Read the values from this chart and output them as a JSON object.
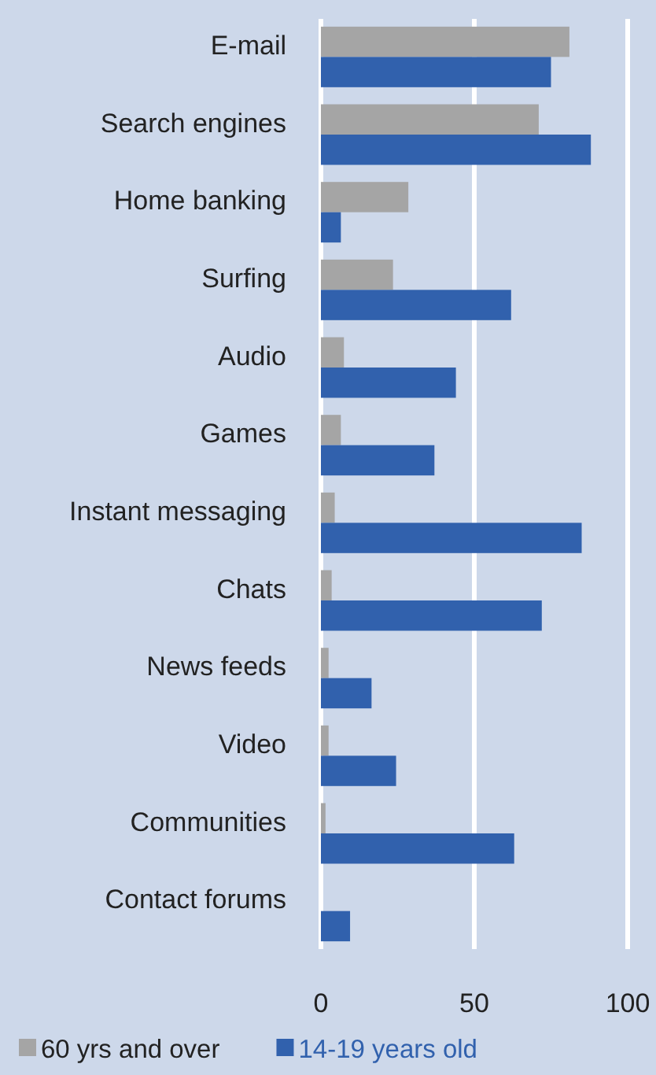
{
  "chart_data": {
    "type": "bar",
    "orientation": "horizontal",
    "categories": [
      "E-mail",
      "Search engines",
      "Home banking",
      "Surfing",
      "Audio",
      "Games",
      "Instant messaging",
      "Chats",
      "News feeds",
      "Video",
      "Communities",
      "Contact forums"
    ],
    "series": [
      {
        "name": "60 yrs and over",
        "color": "#a5a5a5",
        "values": [
          81,
          71,
          28.5,
          23.5,
          7.5,
          6.5,
          4.5,
          3.5,
          2.5,
          2.5,
          1.5,
          0
        ]
      },
      {
        "name": "14-19 years old",
        "color": "#3161ad",
        "values": [
          75,
          88,
          6.5,
          62,
          44,
          37,
          85,
          72,
          16.5,
          24.5,
          63,
          9.5
        ]
      }
    ],
    "xlim": [
      0,
      100
    ],
    "xticks": [
      0,
      50,
      100
    ],
    "grid": "x",
    "legend": "bottom"
  }
}
